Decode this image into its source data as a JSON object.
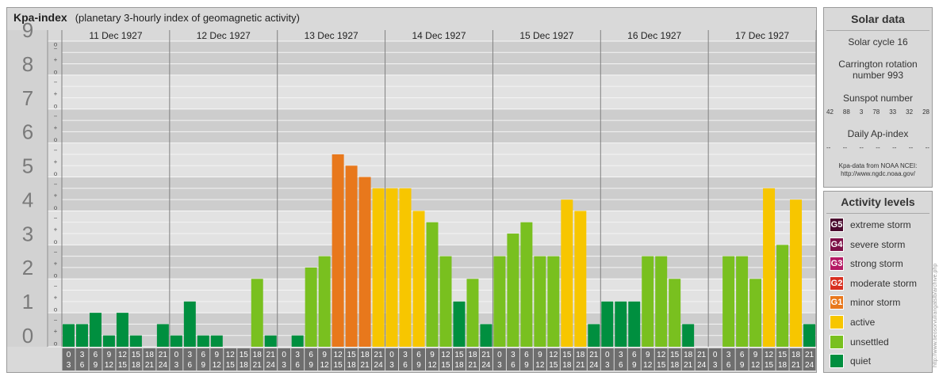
{
  "title": {
    "main": "Kpa-index",
    "subtitle": "(planetary 3-hourly index of geomagnetic activity)"
  },
  "chart_data": {
    "type": "bar",
    "ylim": [
      0,
      9
    ],
    "y_major_ticks": [
      "0",
      "1",
      "2",
      "3",
      "4",
      "5",
      "6",
      "7",
      "8",
      "9"
    ],
    "y_minor_ticks": [
      "o",
      "+",
      "−"
    ],
    "days": [
      "11 Dec 1927",
      "12 Dec 1927",
      "13 Dec 1927",
      "14 Dec 1927",
      "15 Dec 1927",
      "16 Dec 1927",
      "17 Dec 1927"
    ],
    "interval_labels": [
      [
        "0",
        "3"
      ],
      [
        "3",
        "6"
      ],
      [
        "6",
        "9"
      ],
      [
        "9",
        "12"
      ],
      [
        "12",
        "15"
      ],
      [
        "15",
        "18"
      ],
      [
        "18",
        "21"
      ],
      [
        "21",
        "24"
      ]
    ],
    "values": [
      0.667,
      0.667,
      1.0,
      0.333,
      1.0,
      0.333,
      0.0,
      0.667,
      0.333,
      1.333,
      0.333,
      0.333,
      0.0,
      0.0,
      2.0,
      0.333,
      0.0,
      0.333,
      2.333,
      2.667,
      5.667,
      5.333,
      5.0,
      4.667,
      4.667,
      4.667,
      4.0,
      3.667,
      2.667,
      1.333,
      2.0,
      0.667,
      2.667,
      3.333,
      3.667,
      2.667,
      2.667,
      4.333,
      4.0,
      0.667,
      1.333,
      1.333,
      1.333,
      2.667,
      2.667,
      2.0,
      0.667,
      0.0,
      0.0,
      2.667,
      2.667,
      2.0,
      4.667,
      3.0,
      4.333,
      0.667
    ],
    "levels": [
      {
        "name": "extreme storm",
        "code": "G5",
        "color": "#4a0a2e"
      },
      {
        "name": "severe storm",
        "code": "G4",
        "color": "#7d1047"
      },
      {
        "name": "strong storm",
        "code": "G3",
        "color": "#b51a65"
      },
      {
        "name": "moderate storm",
        "code": "G2",
        "color": "#d82f20"
      },
      {
        "name": "minor storm",
        "code": "G1",
        "color": "#e8781c"
      },
      {
        "name": "active",
        "code": "",
        "color": "#f7c600"
      },
      {
        "name": "unsettled",
        "code": "",
        "color": "#79c01f"
      },
      {
        "name": "quiet",
        "code": "",
        "color": "#008f3f"
      }
    ]
  },
  "solar": {
    "title": "Solar data",
    "cycle": "Solar cycle 16",
    "carrington_line1": "Carrington rotation",
    "carrington_line2": "number 993",
    "sunspot_label": "Sunspot number",
    "sunspot_values": [
      "42",
      "88",
      "3",
      "78",
      "33",
      "32",
      "28"
    ],
    "ap_label": "Daily Ap-index",
    "ap_values": [
      "--",
      "--",
      "--",
      "--",
      "--",
      "--",
      "--"
    ],
    "source_line1": "Kpa-data from NOAA NCEI:",
    "source_line2": "http://www.ngdc.noaa.gov/"
  },
  "activity": {
    "title": "Activity levels",
    "items": [
      {
        "code": "G5",
        "label": "extreme storm",
        "color": "#4a0a2e"
      },
      {
        "code": "G4",
        "label": "severe storm",
        "color": "#7d1047"
      },
      {
        "code": "G3",
        "label": "strong storm",
        "color": "#b51a65"
      },
      {
        "code": "G2",
        "label": "moderate storm",
        "color": "#d82f20"
      },
      {
        "code": "G1",
        "label": "minor storm",
        "color": "#e8781c"
      },
      {
        "code": "",
        "label": "active",
        "color": "#f7c600"
      },
      {
        "code": "",
        "label": "unsettled",
        "color": "#79c01f"
      },
      {
        "code": "",
        "label": "quiet",
        "color": "#008f3f"
      }
    ]
  },
  "watermark": "http://www.tieosorvulrangatslb/archive.php"
}
